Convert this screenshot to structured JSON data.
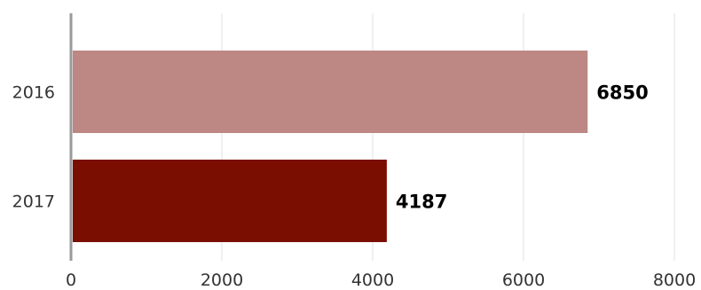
{
  "chart_data": {
    "type": "bar",
    "orientation": "horizontal",
    "title": "",
    "xlabel": "",
    "ylabel": "",
    "categories": [
      "2016",
      "2017"
    ],
    "values": [
      6850,
      4187
    ],
    "value_labels": [
      "6850",
      "4187"
    ],
    "bar_colors": [
      "#bd8883",
      "#7a0e00"
    ],
    "xlim": [
      0,
      8000
    ],
    "x_ticks": [
      0,
      2000,
      4000,
      6000,
      8000
    ],
    "x_tick_labels": [
      "0",
      "2000",
      "4000",
      "6000",
      "8000"
    ],
    "grid": true,
    "legend": "none"
  }
}
